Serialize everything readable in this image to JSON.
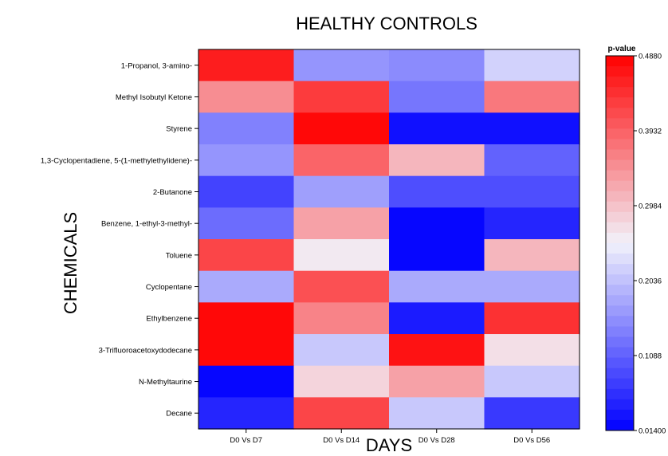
{
  "chart_data": {
    "type": "heatmap",
    "title": "HEALTHY CONTROLS",
    "xlabel": "DAYS",
    "ylabel": "CHEMICALS",
    "colorbar_title": "p-value",
    "colorbar_ticks": [
      "0.4880",
      "0.3932",
      "0.2984",
      "0.2036",
      "0.1088",
      "0.01400"
    ],
    "colorbar_range": [
      0.014,
      0.488
    ],
    "colormap": [
      "#0000ff",
      "#f2f2fb",
      "#ff0000"
    ],
    "columns": [
      "D0 Vs D7",
      "D0 Vs D14",
      "D0 Vs D28",
      "D0 Vs D56"
    ],
    "rows": [
      "1-Propanol, 3-amino-",
      "Methyl Isobutyl Ketone",
      "Styrene",
      "1,3-Cyclopentadiene, 5-(1-methylethylidene)-",
      "2-Butanone",
      "Benzene, 1-ethyl-3-methyl-",
      "Toluene",
      "Cyclopentane",
      "Ethylbenzene",
      "3-Trifluoroacetoxydodecane",
      "N-Methyltaurine",
      "Decane"
    ],
    "values": [
      [
        0.46,
        0.16,
        0.15,
        0.22
      ],
      [
        0.35,
        0.43,
        0.13,
        0.37
      ],
      [
        0.14,
        0.48,
        0.03,
        0.03
      ],
      [
        0.16,
        0.39,
        0.31,
        0.11
      ],
      [
        0.08,
        0.17,
        0.09,
        0.09
      ],
      [
        0.12,
        0.33,
        0.02,
        0.05
      ],
      [
        0.42,
        0.26,
        0.02,
        0.31
      ],
      [
        0.18,
        0.41,
        0.18,
        0.18
      ],
      [
        0.48,
        0.36,
        0.04,
        0.44
      ],
      [
        0.48,
        0.21,
        0.47,
        0.27
      ],
      [
        0.02,
        0.28,
        0.33,
        0.21
      ],
      [
        0.05,
        0.42,
        0.21,
        0.07
      ]
    ]
  }
}
